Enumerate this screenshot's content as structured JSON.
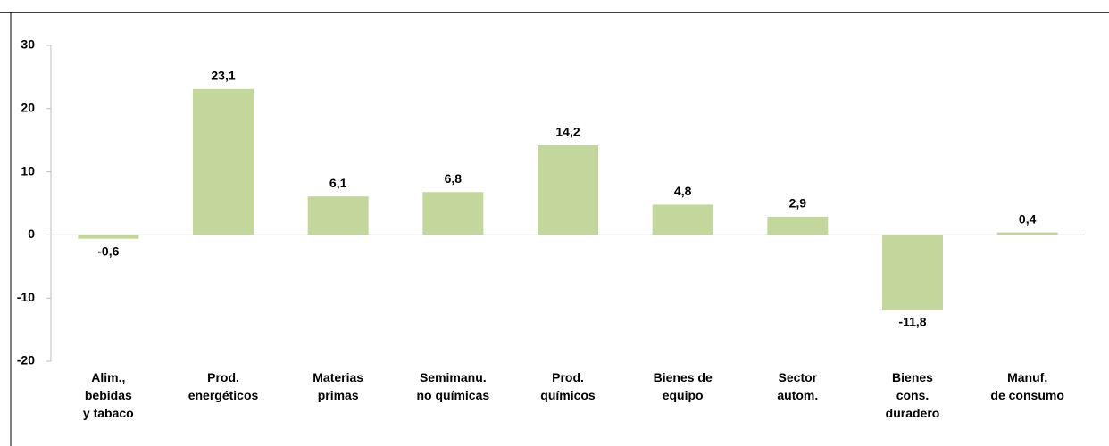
{
  "chart_data": {
    "type": "bar",
    "categories": [
      "Alim.,\nbebidas\ny tabaco",
      "Prod.\nenergéticos",
      "Materias\nprimas",
      "Semimanu.\nno químicas",
      "Prod.\nquímicos",
      "Bienes de\nequipo",
      "Sector\nautom.",
      "Bienes\ncons.\nduradero",
      "Manuf.\nde consumo"
    ],
    "values": [
      -0.6,
      23.1,
      6.1,
      6.8,
      14.2,
      4.8,
      2.9,
      -11.8,
      0.4
    ],
    "value_labels": [
      "-0,6",
      "23,1",
      "6,1",
      "6,8",
      "14,2",
      "4,8",
      "2,9",
      "-11,8",
      "0,4"
    ],
    "color": "#c3d69b",
    "ylim": [
      -20,
      30
    ],
    "yticks": [
      -20,
      -10,
      0,
      10,
      20,
      30
    ],
    "grid": false
  }
}
